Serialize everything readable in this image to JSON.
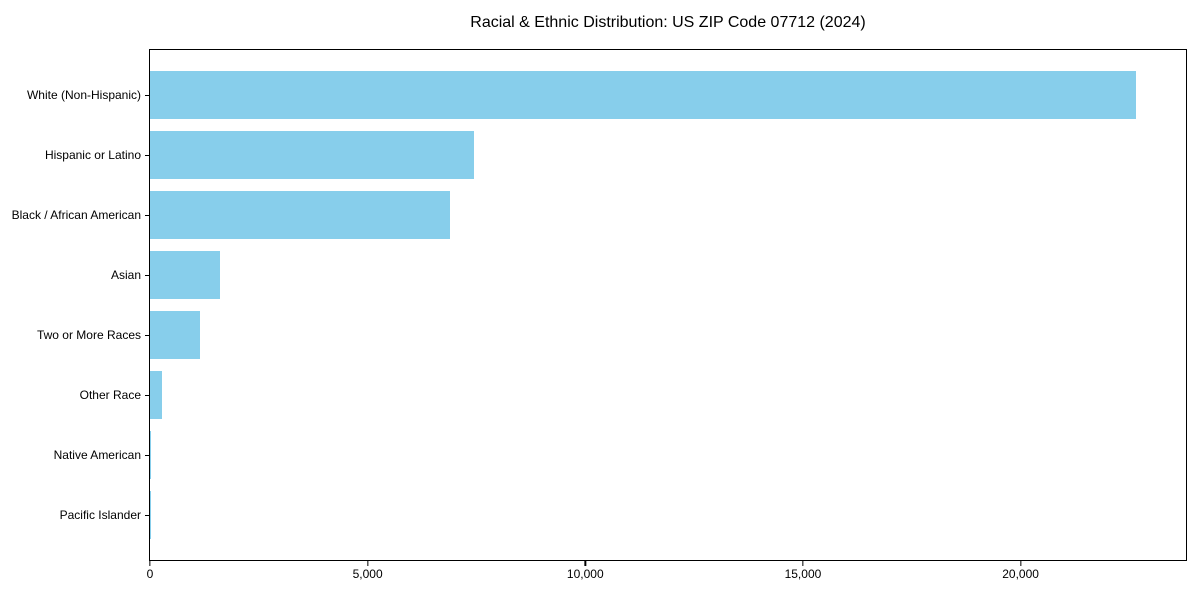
{
  "chart_data": {
    "type": "bar",
    "orientation": "horizontal",
    "title": "Racial & Ethnic Distribution: US ZIP Code 07712 (2024)",
    "categories": [
      "White (Non-Hispanic)",
      "Hispanic or Latino",
      "Black / African American",
      "Asian",
      "Two or More Races",
      "Other Race",
      "Native American",
      "Pacific Islander"
    ],
    "values": [
      22650,
      7440,
      6890,
      1610,
      1150,
      280,
      20,
      10
    ],
    "xlabel": "",
    "ylabel": "",
    "xlim": [
      0,
      23800
    ],
    "xticks": {
      "values": [
        0,
        5000,
        10000,
        15000,
        20000
      ],
      "labels": [
        "0",
        "5,000",
        "10,000",
        "15,000",
        "20,000"
      ]
    },
    "bar_color": "#87CEEB",
    "bar_rel_height": 0.8,
    "grid": false,
    "legend": "none",
    "frame": "full-box",
    "background": "#ffffff",
    "text_color": "#000000"
  }
}
